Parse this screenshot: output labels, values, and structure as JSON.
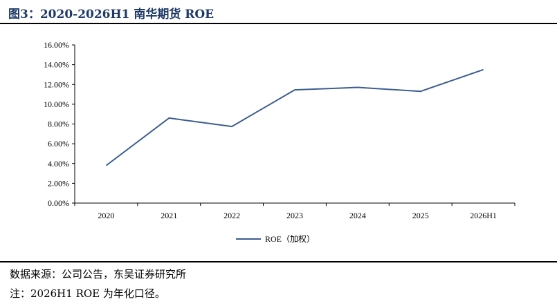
{
  "figure": {
    "title": "图3：2020-2026H1 南华期货 ROE",
    "source": "数据来源：公司公告，东吴证券研究所",
    "footnote": "注：2026H1 ROE 为年化口径。"
  },
  "colors": {
    "series_line": "#3a5d8f",
    "title": "#1f3a68",
    "axis": "#000000"
  },
  "chart_data": {
    "type": "line",
    "title": "",
    "xlabel": "",
    "ylabel": "",
    "categories": [
      "2020",
      "2021",
      "2022",
      "2023",
      "2024",
      "2025",
      "2026H1"
    ],
    "yticks": [
      "0.00%",
      "2.00%",
      "4.00%",
      "6.00%",
      "8.00%",
      "10.00%",
      "12.00%",
      "14.00%",
      "16.00%"
    ],
    "ylim": [
      0,
      16
    ],
    "grid": false,
    "legend": "bottom-center",
    "series": [
      {
        "name": "ROE（加权）",
        "values": [
          3.8,
          8.6,
          7.75,
          11.45,
          11.7,
          11.3,
          13.5
        ]
      }
    ]
  }
}
